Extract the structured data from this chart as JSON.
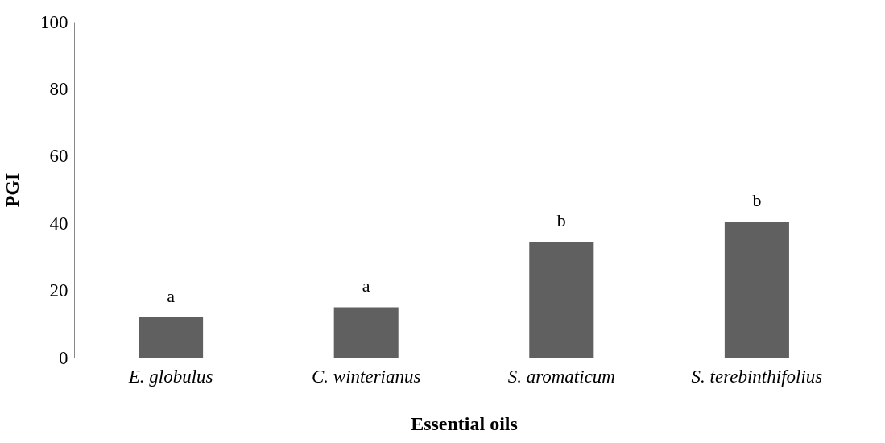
{
  "chart_data": {
    "type": "bar",
    "xlabel": "Essential oils",
    "ylabel": "PGI",
    "categories": [
      "E. globulus",
      "C. winterianus",
      "S. aromaticum",
      "S. terebinthifolius"
    ],
    "values": [
      12,
      15,
      34.5,
      40.5
    ],
    "color": "#606060",
    "ylim": [
      0,
      100
    ],
    "yticks": [
      0,
      20,
      40,
      60,
      80,
      100
    ],
    "grid": false,
    "annotations": [
      {
        "text": "a",
        "x": "E. globulus",
        "y": 12
      },
      {
        "text": "a",
        "x": "C. winterianus",
        "y": 15
      },
      {
        "text": "b",
        "x": "S. aromaticum",
        "y": 34.5
      },
      {
        "text": "b",
        "x": "S. terebinthifolius",
        "y": 40.5
      }
    ]
  }
}
